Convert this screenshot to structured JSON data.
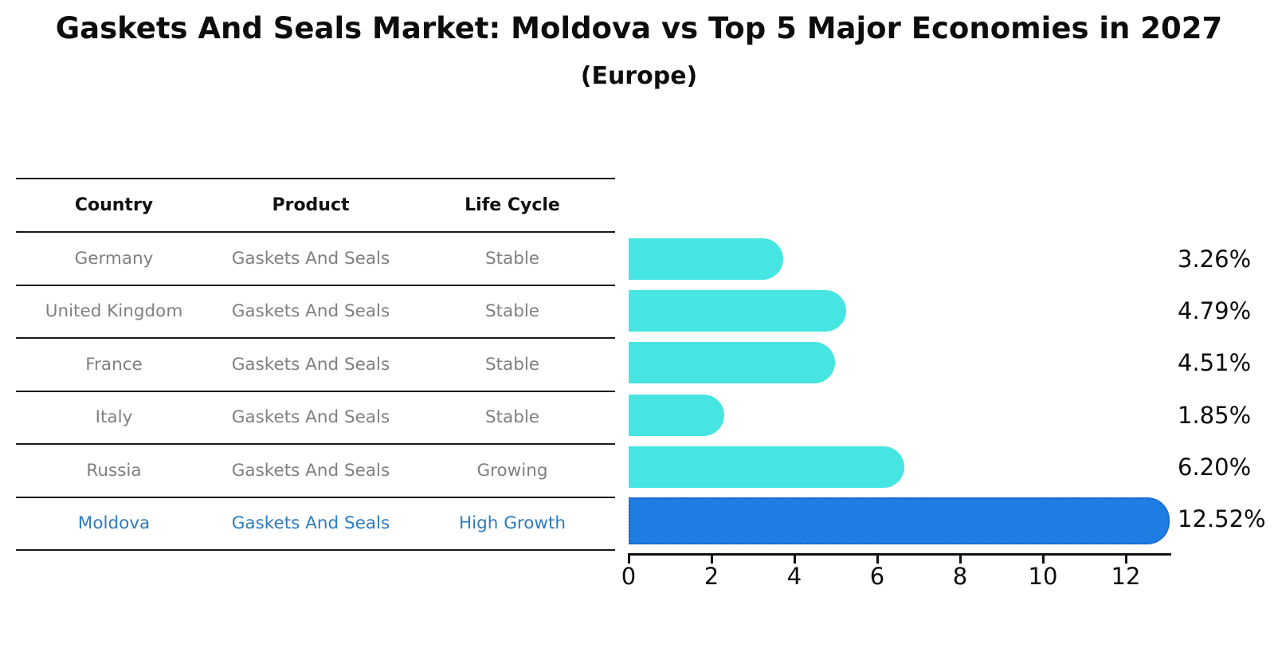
{
  "title": "Gaskets And Seals Market: Moldova vs Top 5 Major Economies in 2027",
  "subtitle": "(Europe)",
  "table": {
    "headers": [
      "Country",
      "Product",
      "Life Cycle"
    ],
    "rows": [
      {
        "country": "Germany",
        "product": "Gaskets And Seals",
        "life_cycle": "Stable",
        "highlight": false
      },
      {
        "country": "United Kingdom",
        "product": "Gaskets And Seals",
        "life_cycle": "Stable",
        "highlight": false
      },
      {
        "country": "France",
        "product": "Gaskets And Seals",
        "life_cycle": "Stable",
        "highlight": false
      },
      {
        "country": "Italy",
        "product": "Gaskets And Seals",
        "life_cycle": "Stable",
        "highlight": false
      },
      {
        "country": "Russia",
        "product": "Gaskets And Seals",
        "life_cycle": "Growing",
        "highlight": false
      },
      {
        "country": "Moldova",
        "product": "Gaskets And Seals",
        "life_cycle": "High Growth",
        "highlight": true
      }
    ]
  },
  "chart_data": {
    "type": "bar",
    "orientation": "horizontal",
    "title": "Gaskets And Seals Market: Moldova vs Top 5 Major Economies in 2027",
    "subtitle": "(Europe)",
    "categories": [
      "Germany",
      "United Kingdom",
      "France",
      "Italy",
      "Russia",
      "Moldova"
    ],
    "values": [
      3.26,
      4.79,
      4.51,
      1.85,
      6.2,
      12.52
    ],
    "value_labels": [
      "3.26%",
      "4.79%",
      "4.51%",
      "1.85%",
      "6.20%",
      "12.52%"
    ],
    "xlim": [
      0,
      13.1
    ],
    "x_ticks": [
      0,
      2,
      4,
      6,
      8,
      10,
      12
    ],
    "highlight_index": 5,
    "grid": false,
    "legend": "none"
  },
  "colors": {
    "bar": "#46E5E1",
    "highlight_bar": "#1E7CE3",
    "highlight_border": "#1262C9",
    "highlight_text": "#2E7CBF",
    "row_text": "#808080",
    "header_text": "#111111",
    "axis": "#111111"
  }
}
